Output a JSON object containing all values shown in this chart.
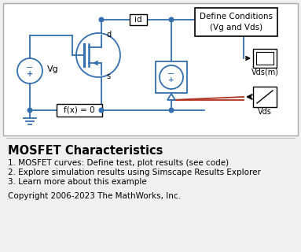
{
  "bg_color": "#f0f0f0",
  "title": "MOSFET Characteristics",
  "bullet1": "1. MOSFET curves: Define test, plot results (see code)",
  "bullet2": "2. Explore simulation results using Simscape Results Explorer",
  "bullet3": "3. Learn more about this example",
  "copyright": "Copyright 2006-2023 The MathWorks, Inc.",
  "blue": "#3470b0",
  "red": "#b03020",
  "black": "#000000",
  "white": "#ffffff",
  "circuit_border": "#cccccc"
}
